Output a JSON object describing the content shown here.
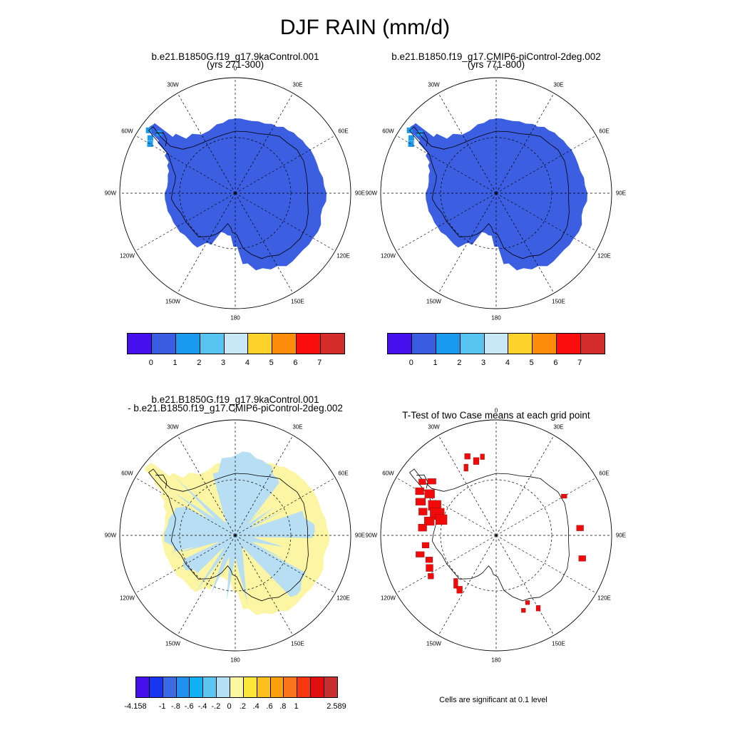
{
  "title": "DJF RAIN (mm/d)",
  "panels": {
    "p1": {
      "line1": "b.e21.B1850G.f19_g17.9kaControl.001",
      "line2": "(yrs 271-300)"
    },
    "p2": {
      "line1": "b.e21.B1850.f19_g17.CMIP6-piControl-2deg.002",
      "line2": "(yrs 771-800)"
    },
    "p3": {
      "line1": "b.e21.B1850G.f19_g17.9kaControl.001",
      "line2": "- b.e21.B1850.f19_g17.CMIP6-piControl-2deg.002"
    },
    "p4": {
      "line1": "T-Test of two Case means at each grid point",
      "line2": ""
    }
  },
  "lon_labels": [
    "0",
    "30E",
    "60E",
    "90E",
    "120E",
    "150E",
    "180",
    "150W",
    "120W",
    "90W",
    "60W",
    "30W"
  ],
  "colorbar_abs": {
    "colors": [
      "#4411ee",
      "#3a5ce0",
      "#1a9aef",
      "#57c3f0",
      "#c6e8f7",
      "#fdd22a",
      "#fc8c0a",
      "#fa0d0d",
      "#d42b2b"
    ],
    "labels": [
      "0",
      "1",
      "2",
      "3",
      "4",
      "5",
      "6",
      "7"
    ]
  },
  "colorbar_diff": {
    "colors": [
      "#4411ee",
      "#1a35ee",
      "#3a6ae6",
      "#2090ee",
      "#10b0f4",
      "#5cc6f2",
      "#b4def3",
      "#fbf6a0",
      "#fde63c",
      "#fdc11e",
      "#fca10a",
      "#f9741a",
      "#f6370f",
      "#e00e0e",
      "#c83030"
    ],
    "labels": [
      "-4.158",
      "-1",
      "-.8",
      "-.6",
      "-.4",
      "-.2",
      "0",
      ".2",
      ".4",
      ".6",
      ".8",
      "1",
      "2.589"
    ]
  },
  "colors": {
    "rain_fill": "#3c5ee0",
    "peninsula_light": "#1a9aef",
    "diff_pos": "#fbf5a4",
    "diff_neg": "#b7def3",
    "signif": "#f20a0a"
  },
  "footnote": "Cells are significant at 0.1 level"
}
